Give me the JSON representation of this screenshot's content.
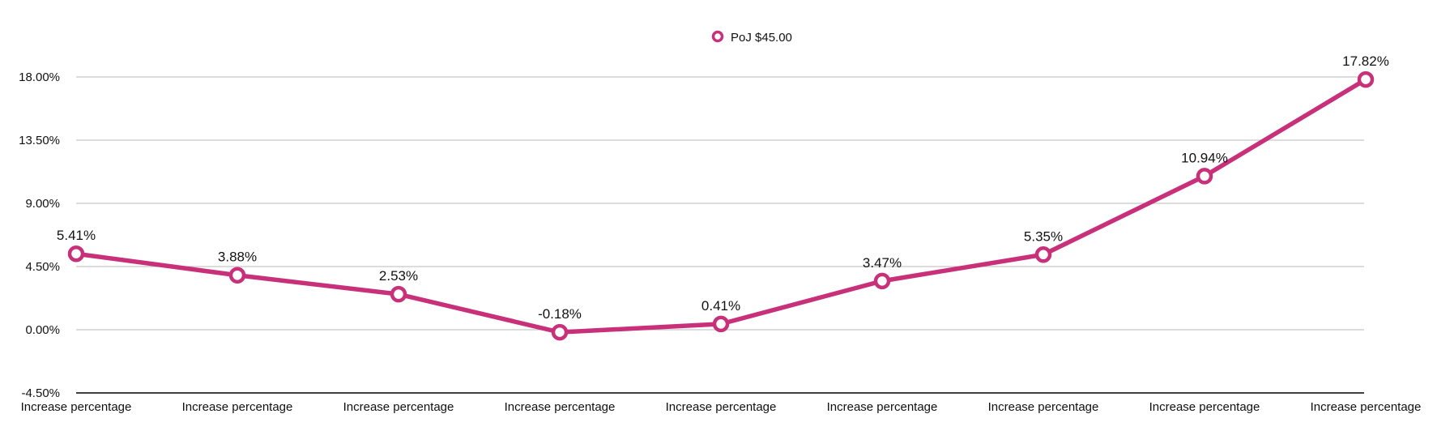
{
  "chart_data": {
    "type": "line",
    "categories": [
      "Increase percentage",
      "Increase percentage",
      "Increase percentage",
      "Increase percentage",
      "Increase percentage",
      "Increase percentage",
      "Increase percentage",
      "Increase percentage",
      "Increase percentage"
    ],
    "series": [
      {
        "name": "PoJ $45.00",
        "values": [
          5.41,
          3.88,
          2.53,
          -0.18,
          0.41,
          3.47,
          5.35,
          10.94,
          17.82
        ],
        "data_labels": [
          "5.41%",
          "3.88%",
          "2.53%",
          "-0.18%",
          "0.41%",
          "3.47%",
          "5.35%",
          "10.94%",
          "17.82%"
        ],
        "color": "#C8317A"
      }
    ],
    "y_ticks": [
      {
        "value": -4.5,
        "label": "-4.50%"
      },
      {
        "value": 0,
        "label": "0.00%"
      },
      {
        "value": 4.5,
        "label": "4.50%"
      },
      {
        "value": 9,
        "label": "9.00%"
      },
      {
        "value": 13.5,
        "label": "13.50%"
      },
      {
        "value": 18,
        "label": "18.00%"
      }
    ],
    "ylim": [
      -4.5,
      18
    ],
    "grid": true,
    "legend_position": "top-center",
    "grid_color": "#C6C6C6",
    "axis_color": "#000000"
  }
}
